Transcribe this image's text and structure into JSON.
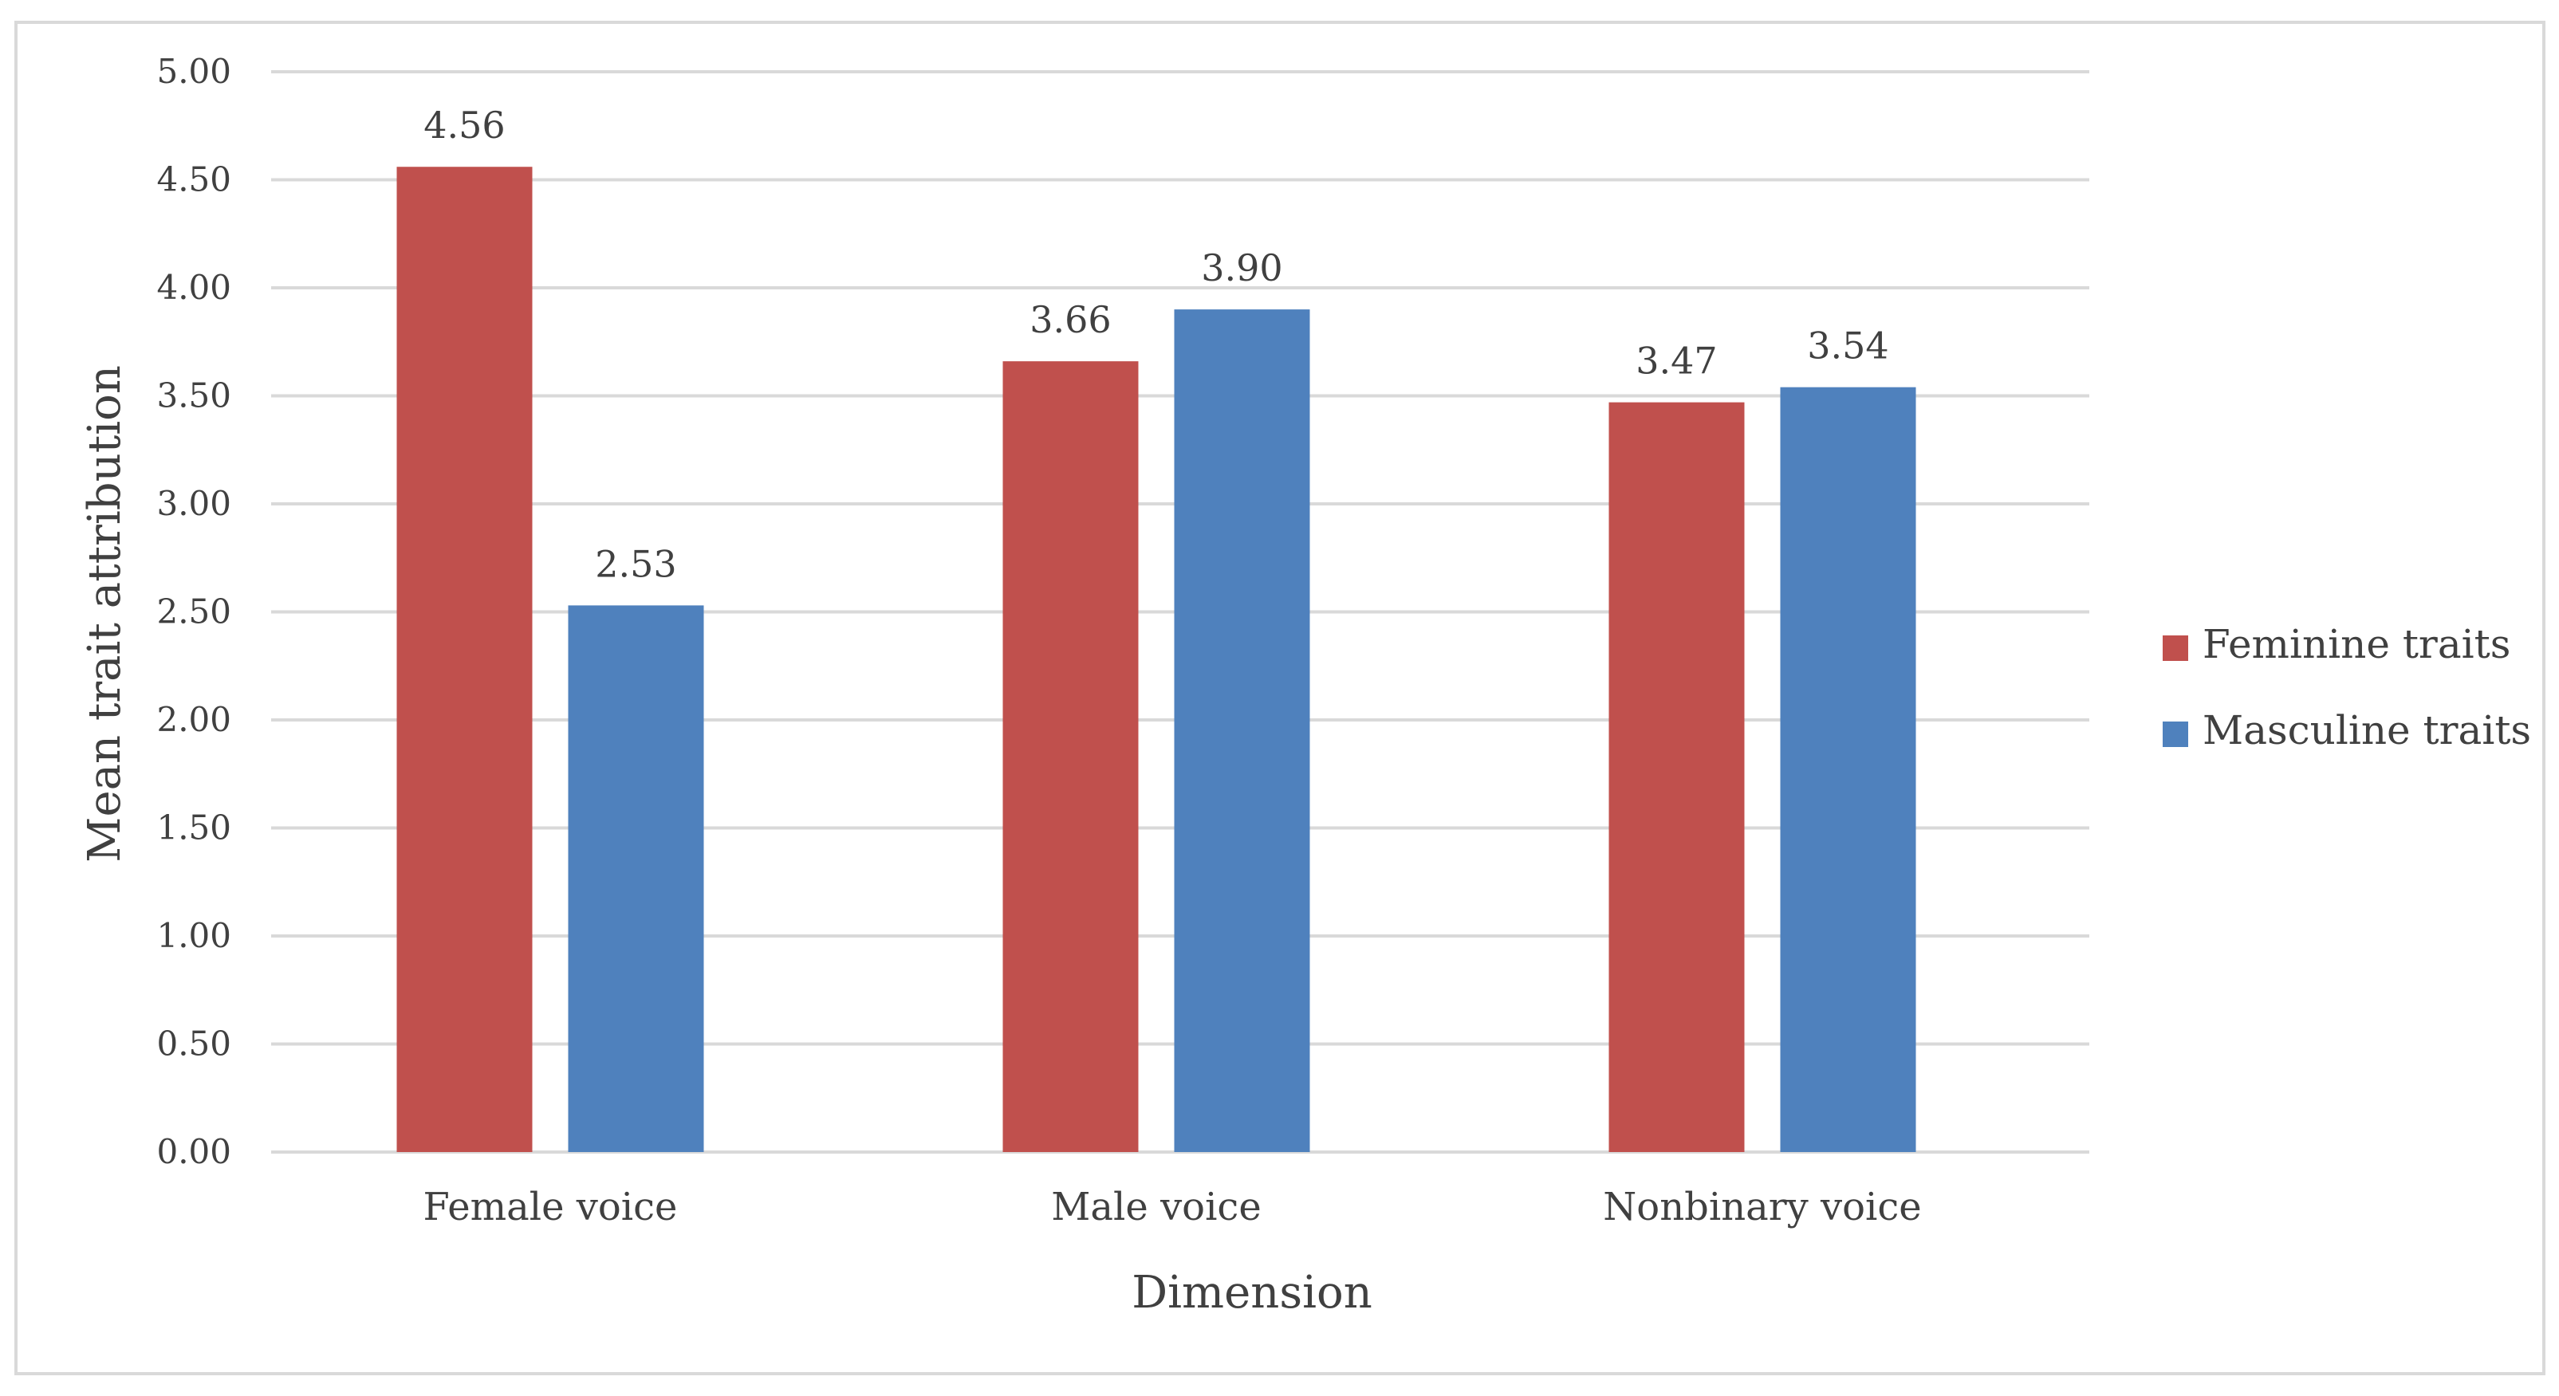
{
  "chart_data": {
    "type": "bar",
    "title": "",
    "xlabel": "Dimension",
    "ylabel": "Mean trait attribution",
    "ylim": [
      0,
      5
    ],
    "ytick_step": 0.5,
    "yticks": [
      "0.00",
      "0.50",
      "1.00",
      "1.50",
      "2.00",
      "2.50",
      "3.00",
      "3.50",
      "4.00",
      "4.50",
      "5.00"
    ],
    "categories": [
      "Female voice",
      "Male voice",
      "Nonbinary voice"
    ],
    "series": [
      {
        "name": "Feminine traits",
        "color": "#C0504D",
        "values": [
          4.56,
          3.66,
          3.47
        ],
        "labels": [
          "4.56",
          "3.66",
          "3.47"
        ]
      },
      {
        "name": "Masculine traits",
        "color": "#4F81BD",
        "values": [
          2.53,
          3.9,
          3.54
        ],
        "labels": [
          "2.53",
          "3.90",
          "3.54"
        ]
      }
    ],
    "grid": true,
    "legend": "right"
  }
}
